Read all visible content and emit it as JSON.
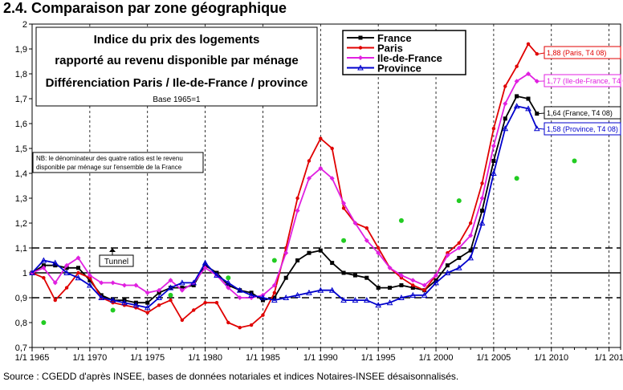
{
  "heading": "2.4. Comparaison par zone géographique",
  "source": "Source : CGEDD d'après INSEE, bases de données notariales et indices Notaires-INSEE désaisonnalisés.",
  "chart_data": {
    "type": "line",
    "title_lines": [
      "Indice du prix des logements",
      "rapporté au revenu disponible par ménage",
      "Différenciation Paris / Ile-de-France / province"
    ],
    "base_note": "Base 1965=1",
    "nb_note_lines": [
      "NB: le dénominateur des quatre ratios est le revenu",
      "disponible par ménage sur l'ensemble de la France"
    ],
    "tunnel_label": "Tunnel",
    "xlim": [
      1965,
      2016
    ],
    "ylim": [
      0.7,
      2.0
    ],
    "x_tick_values": [
      1965,
      1970,
      1975,
      1980,
      1985,
      1990,
      1995,
      2000,
      2005,
      2010,
      2015
    ],
    "x_tick_labels": [
      "1/1 1965",
      "1/1 1970",
      "1/1 1975",
      "1/1 1980",
      "1/1 1985",
      "1/1 1990",
      "1/1 1995",
      "1/1 2000",
      "1/1 2005",
      "1/1 2010",
      "1/1 201"
    ],
    "y_ticks": [
      0.7,
      0.8,
      0.9,
      1.0,
      1.1,
      1.2,
      1.3,
      1.4,
      1.5,
      1.6,
      1.7,
      1.8,
      1.9,
      2.0
    ],
    "y_tick_labels": [
      "0,7",
      "0,8",
      "0,9",
      "1",
      "1,1",
      "1,2",
      "1,3",
      "1,4",
      "1,5",
      "1,6",
      "1,7",
      "1,8",
      "1,9",
      "2"
    ],
    "tunnel_bounds": [
      0.9,
      1.1
    ],
    "reference_line": 1.0,
    "legend_position": "top-right",
    "series": [
      {
        "name": "France",
        "color": "#000000",
        "marker": "square",
        "end_label": "1,64 (France, T4 08)",
        "x": [
          1965,
          1966,
          1967,
          1968,
          1969,
          1970,
          1971,
          1972,
          1973,
          1974,
          1975,
          1976,
          1977,
          1978,
          1979,
          1980,
          1981,
          1982,
          1983,
          1984,
          1985,
          1986,
          1987,
          1988,
          1989,
          1990,
          1991,
          1992,
          1993,
          1994,
          1995,
          1996,
          1997,
          1998,
          1999,
          2000,
          2001,
          2002,
          2003,
          2004,
          2005,
          2006,
          2007,
          2008,
          2008.75
        ],
        "y": [
          1.0,
          1.03,
          1.03,
          1.02,
          1.02,
          0.97,
          0.91,
          0.89,
          0.89,
          0.88,
          0.88,
          0.92,
          0.94,
          0.94,
          0.95,
          1.03,
          1.0,
          0.95,
          0.93,
          0.92,
          0.89,
          0.9,
          0.98,
          1.05,
          1.08,
          1.09,
          1.04,
          1.0,
          0.99,
          0.98,
          0.94,
          0.94,
          0.95,
          0.94,
          0.93,
          0.97,
          1.03,
          1.06,
          1.09,
          1.25,
          1.45,
          1.62,
          1.71,
          1.7,
          1.64
        ]
      },
      {
        "name": "Paris",
        "color": "#e00000",
        "marker": "circle",
        "end_label": "1,88 (Paris, T4 08)",
        "x": [
          1965,
          1966,
          1967,
          1968,
          1969,
          1970,
          1971,
          1972,
          1973,
          1974,
          1975,
          1976,
          1977,
          1978,
          1979,
          1980,
          1981,
          1982,
          1983,
          1984,
          1985,
          1986,
          1987,
          1988,
          1989,
          1990,
          1991,
          1992,
          1993,
          1994,
          1995,
          1996,
          1997,
          1998,
          1999,
          2000,
          2001,
          2002,
          2003,
          2004,
          2005,
          2006,
          2007,
          2008,
          2008.75
        ],
        "y": [
          1.0,
          0.98,
          0.89,
          0.94,
          1.0,
          0.98,
          0.9,
          0.88,
          0.87,
          0.86,
          0.84,
          0.87,
          0.89,
          0.81,
          0.85,
          0.88,
          0.88,
          0.8,
          0.78,
          0.79,
          0.83,
          0.92,
          1.1,
          1.3,
          1.45,
          1.54,
          1.5,
          1.26,
          1.2,
          1.18,
          1.1,
          1.02,
          0.98,
          0.95,
          0.93,
          0.99,
          1.08,
          1.12,
          1.2,
          1.36,
          1.58,
          1.75,
          1.83,
          1.92,
          1.88
        ]
      },
      {
        "name": "Ile-de-France",
        "color": "#e020e0",
        "marker": "diamond",
        "end_label": "1,77 (Ile-de-France, T4 08)",
        "x": [
          1965,
          1966,
          1967,
          1968,
          1969,
          1970,
          1971,
          1972,
          1973,
          1974,
          1975,
          1976,
          1977,
          1978,
          1979,
          1980,
          1981,
          1982,
          1983,
          1984,
          1985,
          1986,
          1987,
          1988,
          1989,
          1990,
          1991,
          1992,
          1993,
          1994,
          1995,
          1996,
          1997,
          1998,
          1999,
          2000,
          2001,
          2002,
          2003,
          2004,
          2005,
          2006,
          2007,
          2008,
          2008.75
        ],
        "y": [
          1.0,
          1.02,
          0.96,
          1.03,
          1.06,
          0.99,
          0.96,
          0.96,
          0.95,
          0.95,
          0.92,
          0.93,
          0.97,
          0.93,
          0.96,
          1.02,
          0.99,
          0.94,
          0.9,
          0.9,
          0.91,
          0.95,
          1.08,
          1.25,
          1.38,
          1.42,
          1.38,
          1.28,
          1.2,
          1.13,
          1.08,
          1.02,
          0.99,
          0.97,
          0.95,
          0.99,
          1.07,
          1.1,
          1.15,
          1.3,
          1.51,
          1.68,
          1.77,
          1.8,
          1.77
        ]
      },
      {
        "name": "Province",
        "color": "#0000cc",
        "marker": "triangle",
        "end_label": "1,58 (Province, T4 08)",
        "x": [
          1965,
          1966,
          1967,
          1968,
          1969,
          1970,
          1971,
          1972,
          1973,
          1974,
          1975,
          1976,
          1977,
          1978,
          1979,
          1980,
          1981,
          1982,
          1983,
          1984,
          1985,
          1986,
          1987,
          1988,
          1989,
          1990,
          1991,
          1992,
          1993,
          1994,
          1995,
          1996,
          1997,
          1998,
          1999,
          2000,
          2001,
          2002,
          2003,
          2004,
          2005,
          2006,
          2007,
          2008,
          2008.75
        ],
        "y": [
          1.0,
          1.05,
          1.04,
          1.0,
          0.98,
          0.95,
          0.9,
          0.89,
          0.88,
          0.87,
          0.86,
          0.9,
          0.94,
          0.96,
          0.96,
          1.04,
          0.99,
          0.96,
          0.93,
          0.91,
          0.9,
          0.89,
          0.9,
          0.91,
          0.92,
          0.93,
          0.93,
          0.89,
          0.89,
          0.89,
          0.87,
          0.88,
          0.9,
          0.91,
          0.91,
          0.96,
          1.0,
          1.02,
          1.06,
          1.2,
          1.4,
          1.58,
          1.67,
          1.66,
          1.58
        ]
      },
      {
        "name": "",
        "color": "#22cc22",
        "marker": "dot-only",
        "x": [
          1966,
          1972,
          1977,
          1982,
          1986,
          1992,
          1997,
          2002,
          2007,
          2012
        ],
        "y": [
          0.8,
          0.85,
          0.91,
          0.98,
          1.05,
          1.13,
          1.21,
          1.29,
          1.38,
          1.45
        ]
      }
    ]
  }
}
